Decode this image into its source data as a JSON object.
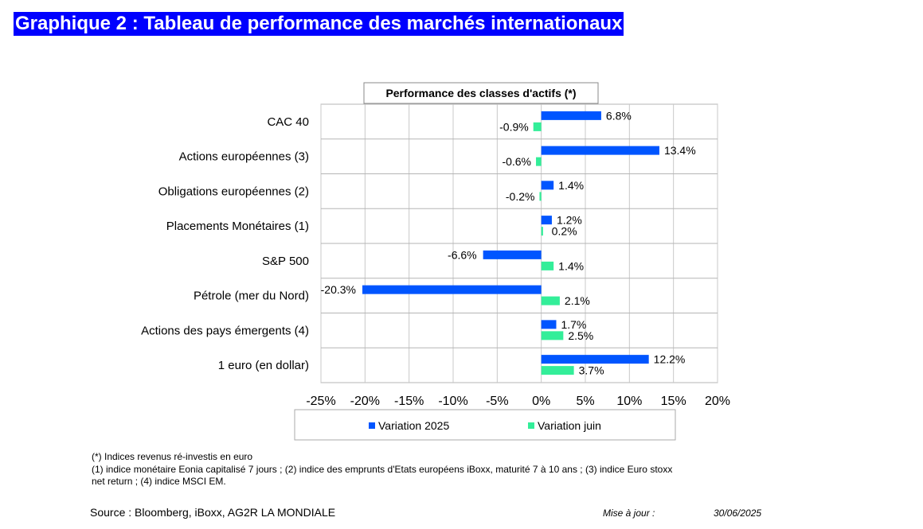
{
  "page_title": "Graphique 2 : Tableau de performance des marchés internationaux",
  "chart_data": {
    "type": "bar",
    "orientation": "horizontal",
    "title": "Performance des classes d'actifs (*)",
    "categories": [
      "CAC 40",
      "Actions européennes (3)",
      "Obligations européennes (2)",
      "Placements Monétaires (1)",
      "S&P 500",
      "Pétrole (mer du Nord)",
      "Actions des pays émergents (4)",
      "1 euro (en dollar)"
    ],
    "series": [
      {
        "name": "Variation 2025",
        "color": "#0055ff",
        "values": [
          6.8,
          13.4,
          1.4,
          1.2,
          -6.6,
          -20.3,
          1.7,
          12.2
        ],
        "labels": [
          "6.8%",
          "13.4%",
          "1.4%",
          "1.2%",
          "-6.6%",
          "-20.3%",
          "1.7%",
          "12.2%"
        ]
      },
      {
        "name": "Variation juin",
        "color": "#33ee99",
        "values": [
          -0.9,
          -0.6,
          -0.2,
          0.2,
          1.4,
          2.1,
          2.5,
          3.7
        ],
        "labels": [
          "-0.9%",
          "-0.6%",
          "-0.2%",
          "0.2%",
          "1.4%",
          "2.1%",
          "2.5%",
          "3.7%"
        ]
      }
    ],
    "xlim": [
      -25,
      20
    ],
    "x_ticks": [
      -25,
      -20,
      -15,
      -10,
      -5,
      0,
      5,
      10,
      15,
      20
    ],
    "x_tick_labels": [
      "-25%",
      "-20%",
      "-15%",
      "-10%",
      "-5%",
      "0%",
      "5%",
      "10%",
      "15%",
      "20%"
    ],
    "grid": true,
    "legend": "bottom",
    "xlabel": "",
    "ylabel": ""
  },
  "footnotes": {
    "line1": "(*) Indices revenus ré-investis en euro",
    "line2": "(1) indice monétaire Eonia capitalisé 7 jours ; (2) indice des emprunts d'Etats européens iBoxx, maturité 7 à 10 ans ; (3) indice Euro stoxx",
    "line3": "net return ; (4) indice MSCI EM."
  },
  "source": "Source : Bloomberg, iBoxx, AG2R LA MONDIALE",
  "update_label": "Mise à jour :",
  "update_date": "30/06/2025"
}
